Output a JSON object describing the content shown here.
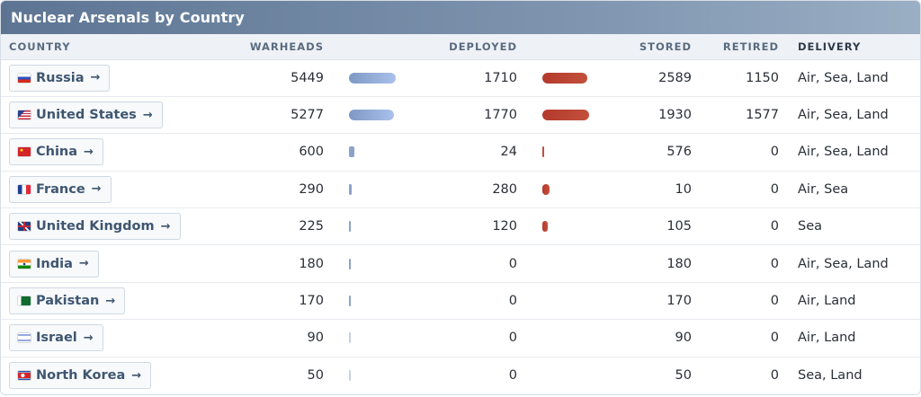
{
  "title": "Nuclear Arsenals by Country",
  "headers": {
    "country": "COUNTRY",
    "warheads": "WARHEADS",
    "deployed": "DEPLOYED",
    "stored": "STORED",
    "retired": "RETIRED",
    "delivery": "DELIVERY"
  },
  "arrow_glyph": "→",
  "max_warheads": 5449,
  "max_deployed": 1770,
  "colors": {
    "warheads_bar": "#8ea7d6",
    "deployed_bar": "#b43a2c",
    "header_bg": "#6b83a1"
  },
  "rows": [
    {
      "country": "Russia",
      "flag": "russia-flag-icon",
      "warheads": "5449",
      "warheads_value": 5449,
      "deployed": "1710",
      "deployed_value": 1710,
      "stored": "2589",
      "retired": "1150",
      "delivery": "Air, Sea, Land"
    },
    {
      "country": "United States",
      "flag": "usa-flag-icon",
      "warheads": "5277",
      "warheads_value": 5277,
      "deployed": "1770",
      "deployed_value": 1770,
      "stored": "1930",
      "retired": "1577",
      "delivery": "Air, Sea, Land"
    },
    {
      "country": "China",
      "flag": "china-flag-icon",
      "warheads": "600",
      "warheads_value": 600,
      "deployed": "24",
      "deployed_value": 24,
      "stored": "576",
      "retired": "0",
      "delivery": "Air, Sea, Land"
    },
    {
      "country": "France",
      "flag": "france-flag-icon",
      "warheads": "290",
      "warheads_value": 290,
      "deployed": "280",
      "deployed_value": 280,
      "stored": "10",
      "retired": "0",
      "delivery": "Air, Sea"
    },
    {
      "country": "United Kingdom",
      "flag": "uk-flag-icon",
      "warheads": "225",
      "warheads_value": 225,
      "deployed": "120",
      "deployed_value": 120,
      "stored": "105",
      "retired": "0",
      "delivery": "Sea"
    },
    {
      "country": "India",
      "flag": "india-flag-icon",
      "warheads": "180",
      "warheads_value": 180,
      "deployed": "0",
      "deployed_value": 0,
      "stored": "180",
      "retired": "0",
      "delivery": "Air, Sea, Land"
    },
    {
      "country": "Pakistan",
      "flag": "pakistan-flag-icon",
      "warheads": "170",
      "warheads_value": 170,
      "deployed": "0",
      "deployed_value": 0,
      "stored": "170",
      "retired": "0",
      "delivery": "Air, Land"
    },
    {
      "country": "Israel",
      "flag": "israel-flag-icon",
      "warheads": "90",
      "warheads_value": 90,
      "deployed": "0",
      "deployed_value": 0,
      "stored": "90",
      "retired": "0",
      "delivery": "Air, Land"
    },
    {
      "country": "North Korea",
      "flag": "north-korea-flag-icon",
      "warheads": "50",
      "warheads_value": 50,
      "deployed": "0",
      "deployed_value": 0,
      "stored": "50",
      "retired": "0",
      "delivery": "Sea, Land"
    }
  ]
}
